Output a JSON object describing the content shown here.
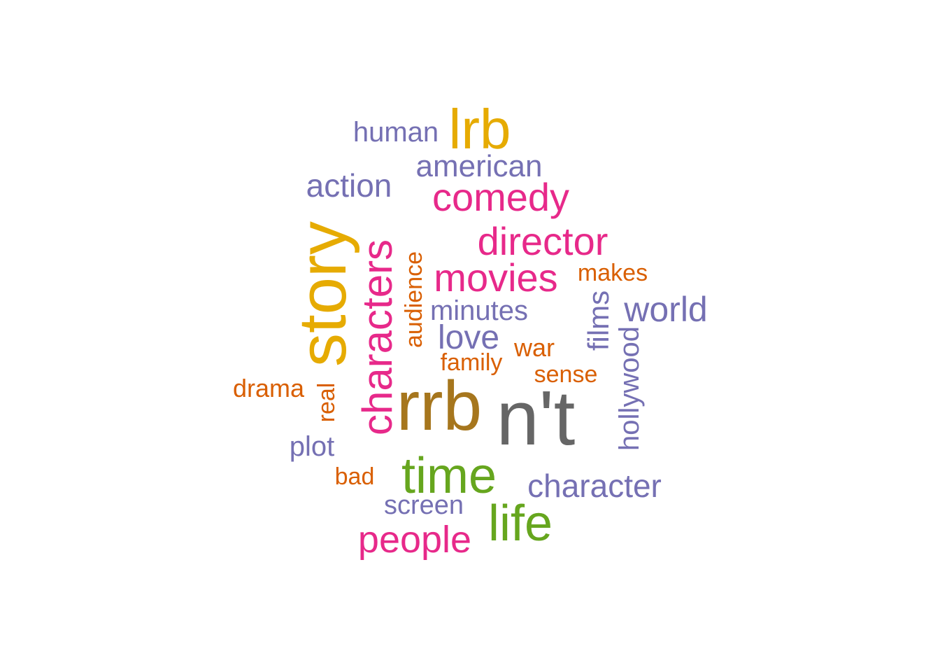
{
  "palette": {
    "gold": "#E6AB02",
    "pink": "#E7298A",
    "lavender": "#7570B3",
    "orange": "#D95F02",
    "green": "#66A61E",
    "brown": "#A6761D",
    "gray": "#666666"
  },
  "words": [
    {
      "key": "n-t",
      "text": "n't",
      "color": "gray",
      "rotated": false
    },
    {
      "key": "rrb",
      "text": "rrb",
      "color": "brown",
      "rotated": false
    },
    {
      "key": "story",
      "text": "story",
      "color": "gold",
      "rotated": true
    },
    {
      "key": "lrb",
      "text": "lrb",
      "color": "gold",
      "rotated": false
    },
    {
      "key": "characters",
      "text": "characters",
      "color": "pink",
      "rotated": true
    },
    {
      "key": "time",
      "text": "time",
      "color": "green",
      "rotated": false
    },
    {
      "key": "life",
      "text": "life",
      "color": "green",
      "rotated": false
    },
    {
      "key": "movies",
      "text": "movies",
      "color": "pink",
      "rotated": false
    },
    {
      "key": "director",
      "text": "director",
      "color": "pink",
      "rotated": false
    },
    {
      "key": "comedy",
      "text": "comedy",
      "color": "pink",
      "rotated": false
    },
    {
      "key": "people",
      "text": "people",
      "color": "pink",
      "rotated": false
    },
    {
      "key": "character",
      "text": "character",
      "color": "lavender",
      "rotated": false
    },
    {
      "key": "world",
      "text": "world",
      "color": "lavender",
      "rotated": false
    },
    {
      "key": "love",
      "text": "love",
      "color": "lavender",
      "rotated": false
    },
    {
      "key": "american",
      "text": "american",
      "color": "lavender",
      "rotated": false
    },
    {
      "key": "action",
      "text": "action",
      "color": "lavender",
      "rotated": false
    },
    {
      "key": "human",
      "text": "human",
      "color": "lavender",
      "rotated": false
    },
    {
      "key": "minutes",
      "text": "minutes",
      "color": "lavender",
      "rotated": false
    },
    {
      "key": "films",
      "text": "films",
      "color": "lavender",
      "rotated": true
    },
    {
      "key": "hollywood",
      "text": "hollywood",
      "color": "lavender",
      "rotated": true
    },
    {
      "key": "plot",
      "text": "plot",
      "color": "lavender",
      "rotated": false
    },
    {
      "key": "screen",
      "text": "screen",
      "color": "lavender",
      "rotated": false
    },
    {
      "key": "audience",
      "text": "audience",
      "color": "orange",
      "rotated": true
    },
    {
      "key": "makes",
      "text": "makes",
      "color": "orange",
      "rotated": false
    },
    {
      "key": "war",
      "text": "war",
      "color": "orange",
      "rotated": false
    },
    {
      "key": "family",
      "text": "family",
      "color": "orange",
      "rotated": false
    },
    {
      "key": "sense",
      "text": "sense",
      "color": "orange",
      "rotated": false
    },
    {
      "key": "drama",
      "text": "drama",
      "color": "orange",
      "rotated": false
    },
    {
      "key": "real",
      "text": "real",
      "color": "orange",
      "rotated": true
    },
    {
      "key": "bad",
      "text": "bad",
      "color": "orange",
      "rotated": false
    }
  ]
}
